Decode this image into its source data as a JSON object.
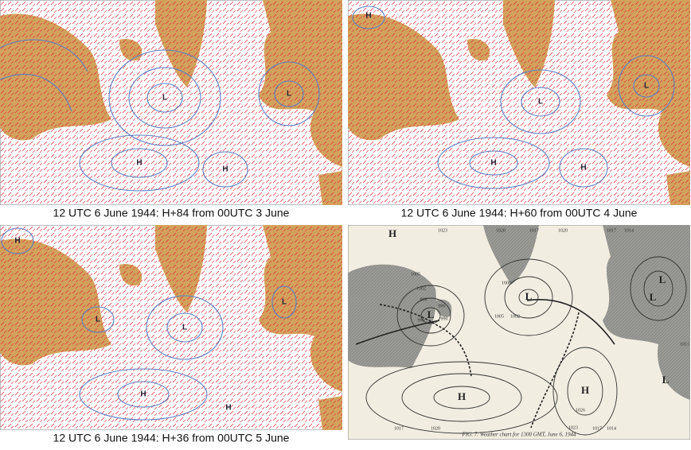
{
  "panels": [
    {
      "caption": "12 UTC 6 June 1944: H+84 from 00UTC 3 June",
      "labels": [
        "L",
        "L",
        "H",
        "H"
      ]
    },
    {
      "caption": "12 UTC 6 June 1944: H+60 from 00UTC 4 June",
      "labels": [
        "H",
        "L",
        "L",
        "H",
        "H"
      ]
    },
    {
      "caption": "12 UTC 6 June 1944: H+36 from 00UTC 5 June",
      "labels": [
        "H",
        "L",
        "L",
        "L",
        "H",
        "H"
      ]
    }
  ],
  "chart": {
    "caption": "FIG. 7. Weather chart for 1300 GMT, June 6, 1944",
    "labels": [
      "H",
      "L",
      "L",
      "L",
      "L",
      "H",
      "H",
      "L"
    ],
    "isobars": [
      1023,
      1020,
      1017,
      1020,
      1017,
      1014,
      1008,
      1005,
      1002,
      999,
      996,
      993,
      990,
      1005,
      1002,
      1026,
      1023,
      1017,
      1020,
      1017,
      1014,
      1011
    ]
  }
}
